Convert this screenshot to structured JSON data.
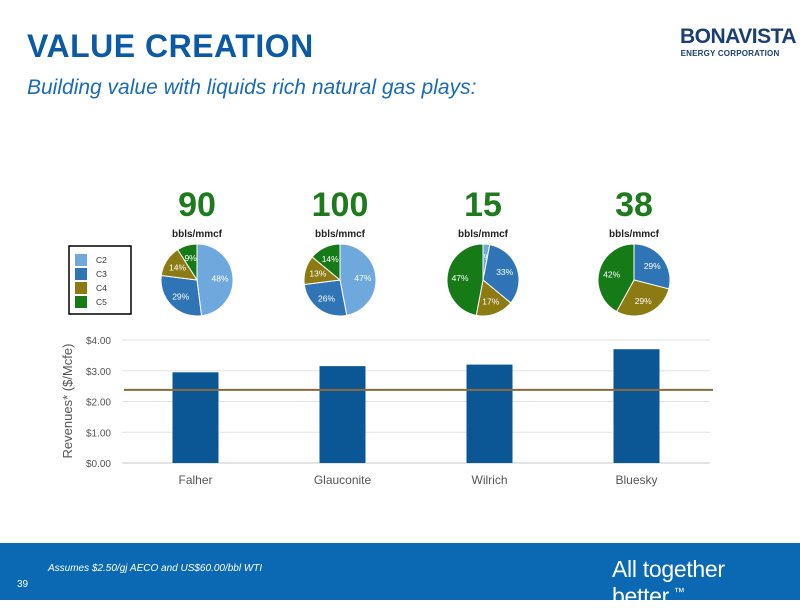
{
  "header": {
    "title": "VALUE CREATION",
    "subtitle": "Building value with liquids rich natural gas plays:"
  },
  "logo": {
    "name": "BONAVISTA",
    "subtitle": "ENERGY CORPORATION"
  },
  "footer": {
    "note": "Assumes $2.50/gj AECO and US$60.00/bbl WTI",
    "page": "39",
    "tagline": "All together better.",
    "tagline_mark": "™"
  },
  "legend_entries": [
    "C2",
    "C3",
    "C4",
    "C5"
  ],
  "colors": {
    "C2": "#6fa8dc",
    "C3": "#2f75b6",
    "C4": "#8c7a12",
    "C5": "#167a16",
    "bar": "#0b5796",
    "reference_line": "#8a6a3a",
    "big_number": "#1d7a1d"
  },
  "chart_data": [
    {
      "type": "pie",
      "name": "Falher",
      "liquids_value": "90",
      "unit": "bbls/mmcf",
      "slices": [
        {
          "label": "C2",
          "value": 48
        },
        {
          "label": "C3",
          "value": 29
        },
        {
          "label": "C4",
          "value": 14
        },
        {
          "label": "C5",
          "value": 9
        }
      ]
    },
    {
      "type": "pie",
      "name": "Glauconite",
      "liquids_value": "100",
      "unit": "bbls/mmcf",
      "slices": [
        {
          "label": "C2",
          "value": 47
        },
        {
          "label": "C3",
          "value": 26
        },
        {
          "label": "C4",
          "value": 13
        },
        {
          "label": "C5",
          "value": 14
        }
      ]
    },
    {
      "type": "pie",
      "name": "Wilrich",
      "liquids_value": "15",
      "unit": "bbls/mmcf",
      "slices": [
        {
          "label": "C2",
          "value": 3
        },
        {
          "label": "C3",
          "value": 33
        },
        {
          "label": "C4",
          "value": 17
        },
        {
          "label": "C5",
          "value": 47
        }
      ]
    },
    {
      "type": "pie",
      "name": "Bluesky",
      "liquids_value": "38",
      "unit": "bbls/mmcf",
      "slices": [
        {
          "label": "C3",
          "value": 29
        },
        {
          "label": "C4",
          "value": 29
        },
        {
          "label": "C5",
          "value": 42
        }
      ]
    },
    {
      "type": "bar",
      "categories": [
        "Falher",
        "Glauconite",
        "Wilrich",
        "Bluesky"
      ],
      "values": [
        2.95,
        3.15,
        3.2,
        3.7
      ],
      "reference_line": 2.38,
      "ylabel": "Revenues* ($/Mcfe)",
      "ylim": [
        0,
        4
      ],
      "yticks": [
        "$0.00",
        "$1.00",
        "$2.00",
        "$3.00",
        "$4.00"
      ],
      "grid": true
    }
  ]
}
